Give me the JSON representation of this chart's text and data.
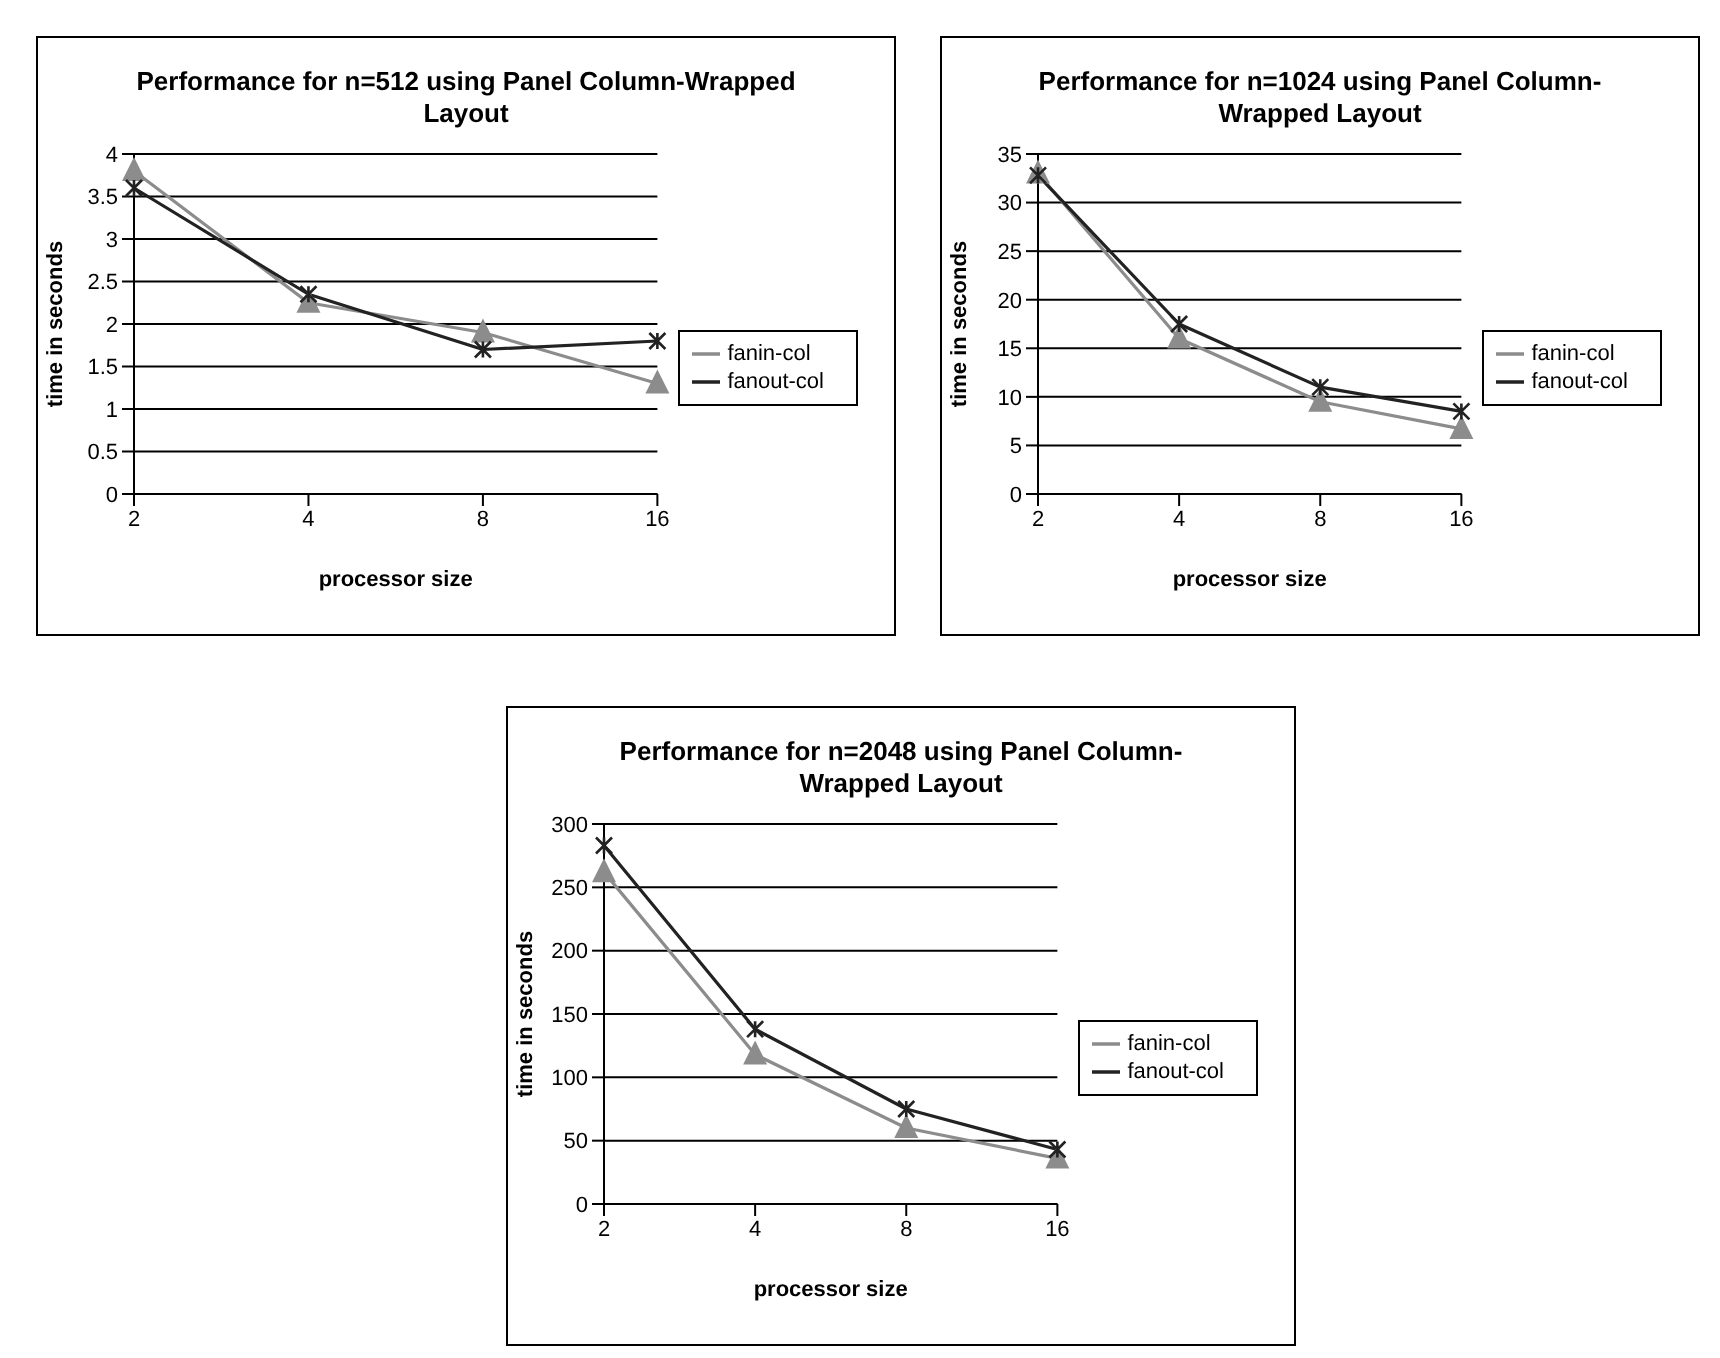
{
  "chart_data": [
    {
      "type": "line",
      "title": "Performance for n=512 using Panel Column-Wrapped Layout",
      "xlabel": "processor size",
      "ylabel": "time in seconds",
      "categories": [
        "2",
        "4",
        "8",
        "16"
      ],
      "ylim": [
        0,
        4
      ],
      "yticks": [
        0,
        0.5,
        1,
        1.5,
        2,
        2.5,
        3,
        3.5,
        4
      ],
      "grid": "y",
      "legend": "right",
      "series": [
        {
          "name": "fanin-col",
          "color": "#8c8c8c",
          "marker": "triangle",
          "values": [
            3.8,
            2.25,
            1.9,
            1.3
          ]
        },
        {
          "name": "fanout-col",
          "color": "#222222",
          "marker": "cross",
          "values": [
            3.6,
            2.35,
            1.7,
            1.8
          ]
        }
      ]
    },
    {
      "type": "line",
      "title": "Performance for n=1024 using Panel Column-Wrapped Layout",
      "xlabel": "processor size",
      "ylabel": "time in seconds",
      "categories": [
        "2",
        "4",
        "8",
        "16"
      ],
      "ylim": [
        0,
        35
      ],
      "yticks": [
        0,
        5,
        10,
        15,
        20,
        25,
        30,
        35
      ],
      "grid": "y",
      "legend": "right",
      "series": [
        {
          "name": "fanin-col",
          "color": "#8c8c8c",
          "marker": "triangle",
          "values": [
            33,
            16,
            9.5,
            6.7
          ]
        },
        {
          "name": "fanout-col",
          "color": "#222222",
          "marker": "cross",
          "values": [
            32.8,
            17.5,
            11,
            8.5
          ]
        }
      ]
    },
    {
      "type": "line",
      "title": "Performance for n=2048 using Panel Column-Wrapped Layout",
      "xlabel": "processor size",
      "ylabel": "time in seconds",
      "categories": [
        "2",
        "4",
        "8",
        "16"
      ],
      "ylim": [
        0,
        300
      ],
      "yticks": [
        0,
        50,
        100,
        150,
        200,
        250,
        300
      ],
      "grid": "y",
      "legend": "right",
      "series": [
        {
          "name": "fanin-col",
          "color": "#8c8c8c",
          "marker": "triangle",
          "values": [
            262,
            118,
            60,
            36
          ]
        },
        {
          "name": "fanout-col",
          "color": "#222222",
          "marker": "cross",
          "values": [
            283,
            138,
            75,
            43
          ]
        }
      ]
    }
  ]
}
